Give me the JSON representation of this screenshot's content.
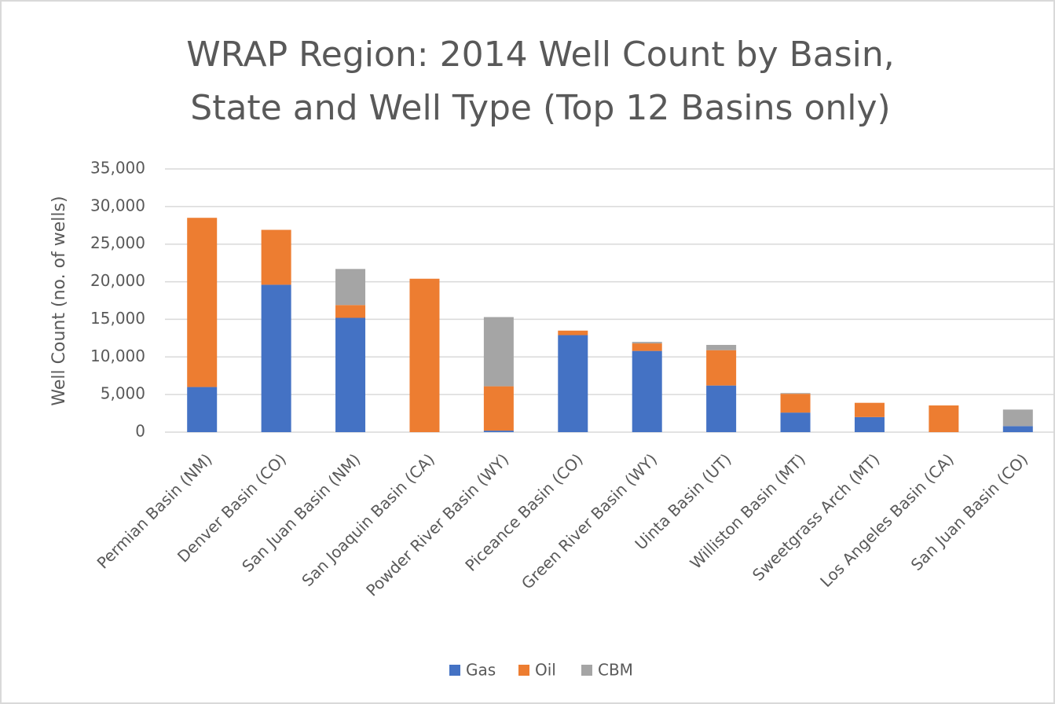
{
  "chart_data": {
    "type": "stacked_bar",
    "title": [
      "WRAP Region: 2014 Well Count by Basin,",
      "State and Well Type (Top 12 Basins only)"
    ],
    "y_label": "Well Count (no. of wells)",
    "categories": [
      "Permian Basin (NM)",
      "Denver Basin (CO)",
      "San Juan Basin (NM)",
      "San Joaquin Basin (CA)",
      "Powder River Basin (WY)",
      "Piceance Basin (CO)",
      "Green River Basin (WY)",
      "Uinta Basin (UT)",
      "Williston Basin (MT)",
      "Sweetgrass Arch (MT)",
      "Los Angeles Basin (CA)",
      "San Juan Basin (CO)"
    ],
    "series": [
      {
        "name": "Gas",
        "color": "#4472c4",
        "values": [
          6000,
          19600,
          15200,
          0,
          200,
          12900,
          10800,
          6200,
          2600,
          2000,
          0,
          800
        ]
      },
      {
        "name": "Oil",
        "color": "#ed7d31",
        "values": [
          22500,
          7300,
          1700,
          20400,
          5900,
          600,
          1000,
          4700,
          2500,
          1900,
          3550,
          0
        ]
      },
      {
        "name": "CBM",
        "color": "#a5a5a5",
        "values": [
          0,
          0,
          4800,
          0,
          9200,
          0,
          200,
          700,
          100,
          0,
          0,
          2200
        ]
      }
    ],
    "ylim": [
      0,
      35000
    ],
    "yticks": [
      0,
      {
        "value": 5000,
        "label": "5,000"
      },
      {
        "value": 10000,
        "label": "10,000"
      },
      {
        "value": 15000,
        "label": "15,000"
      },
      {
        "value": 20000,
        "label": "20,000"
      },
      {
        "value": 25000,
        "label": "25,000"
      },
      {
        "value": 30000,
        "label": "30,000"
      },
      {
        "value": 35000,
        "label": "35,000"
      }
    ],
    "grid": true,
    "legend": "bottom"
  }
}
